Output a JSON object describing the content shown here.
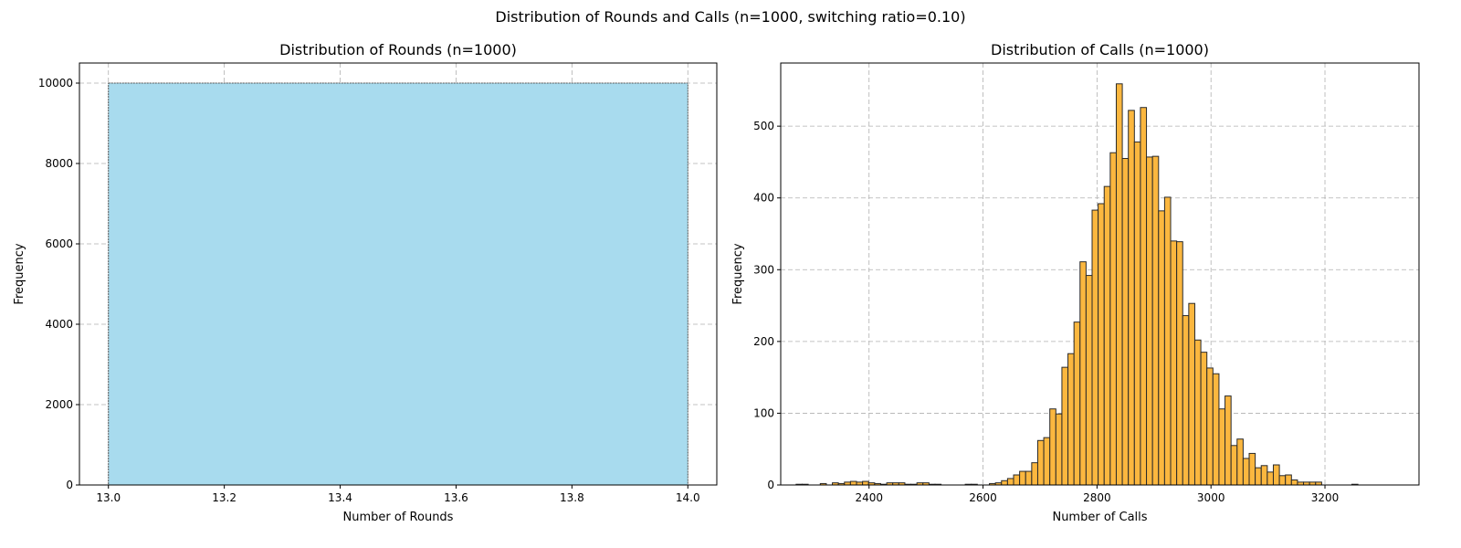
{
  "figure": {
    "suptitle": "Distribution of Rounds and Calls (n=1000, switching ratio=0.10)"
  },
  "chart_data": [
    {
      "type": "bar",
      "title": "Distribution of Rounds (n=1000)",
      "xlabel": "Number of Rounds",
      "ylabel": "Frequency",
      "xlim": [
        12.95,
        14.05
      ],
      "ylim": [
        0,
        10500
      ],
      "xticks": [
        "13.0",
        "13.2",
        "13.4",
        "13.6",
        "13.8",
        "14.0"
      ],
      "yticks": [
        "0",
        "2000",
        "4000",
        "6000",
        "8000",
        "10000"
      ],
      "grid": true,
      "colors": {
        "fill": "#a8dbee",
        "edge": "#555555"
      },
      "bins": [
        {
          "x0": 13.0,
          "x1": 14.0,
          "count": 10000
        }
      ]
    },
    {
      "type": "bar",
      "title": "Distribution of Calls (n=1000)",
      "xlabel": "Number of Calls",
      "ylabel": "Frequency",
      "xlim": [
        2245,
        3365
      ],
      "ylim": [
        0,
        588
      ],
      "xticks": [
        "2400",
        "2600",
        "2800",
        "3000",
        "3200"
      ],
      "yticks": [
        "0",
        "100",
        "200",
        "300",
        "400",
        "500"
      ],
      "grid": true,
      "colors": {
        "fill": "#fbb73f",
        "edge": "#2a2a2a"
      },
      "bin_start": 2272,
      "bin_width": 10.6,
      "counts": [
        1,
        1,
        0,
        0,
        2,
        0,
        3,
        2,
        4,
        5,
        4,
        5,
        3,
        2,
        1,
        3,
        3,
        3,
        1,
        1,
        3,
        3,
        1,
        1,
        0,
        0,
        0,
        0,
        1,
        1,
        0,
        0,
        2,
        3,
        6,
        9,
        14,
        19,
        19,
        31,
        62,
        66,
        106,
        99,
        164,
        183,
        227,
        311,
        292,
        383,
        392,
        416,
        463,
        559,
        455,
        522,
        478,
        526,
        457,
        458,
        382,
        401,
        340,
        339,
        236,
        253,
        202,
        185,
        163,
        155,
        106,
        124,
        55,
        64,
        37,
        44,
        24,
        27,
        18,
        28,
        13,
        14,
        7,
        4,
        4,
        4,
        4,
        0,
        0,
        0,
        0,
        0,
        1,
        0
      ]
    }
  ]
}
